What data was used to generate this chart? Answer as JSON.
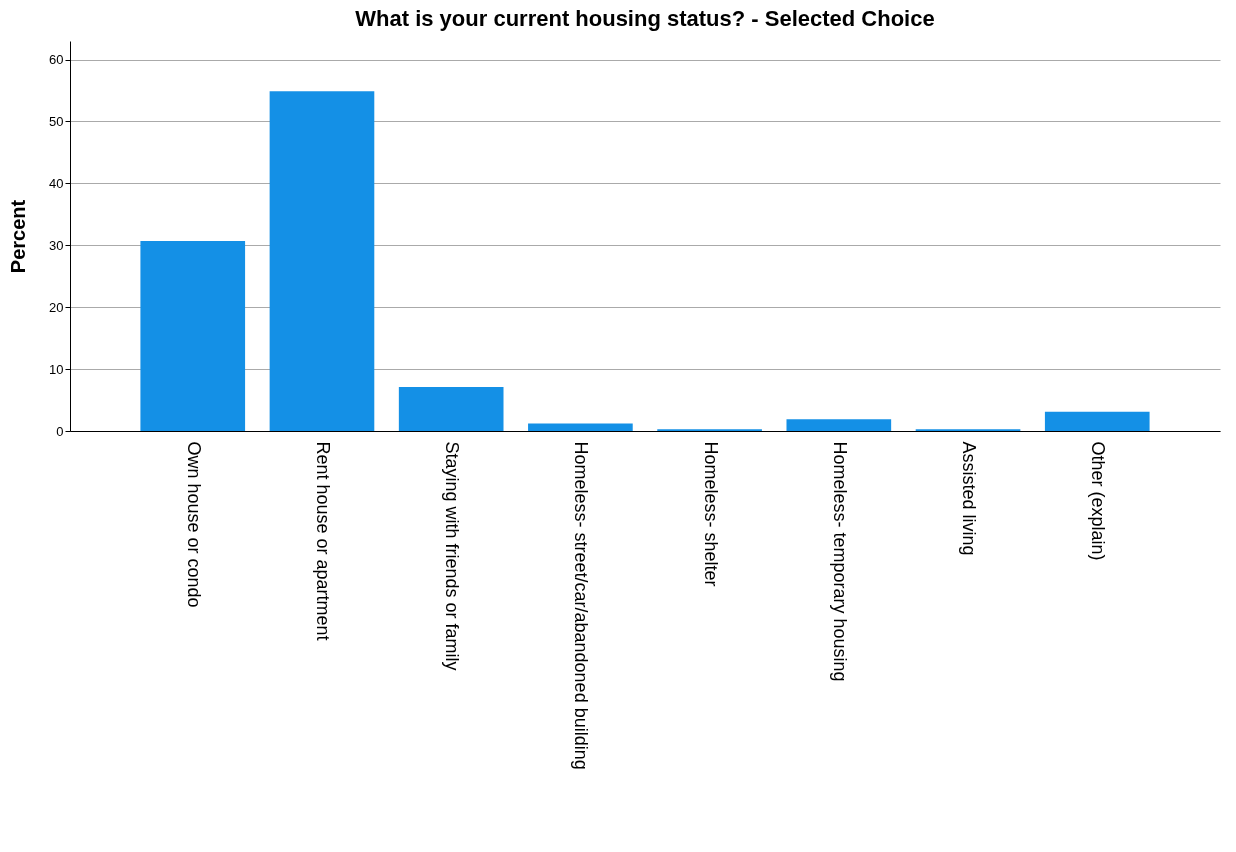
{
  "chart_data": {
    "type": "bar",
    "title": "What is your current housing status? - Selected Choice",
    "ylabel": "Percent",
    "categories": [
      "Own house or condo",
      "Rent house or apartment",
      "Staying with friends or family",
      "Homeless- street/car/abandoned building",
      "Homeless- shelter",
      "Homeless- temporary housing",
      "Assisted living",
      "Other (explain)"
    ],
    "values": [
      30.7,
      54.9,
      7.1,
      1.2,
      0.3,
      1.9,
      0.3,
      3.1
    ],
    "color": "#1490e6",
    "ylim": [
      0,
      63
    ],
    "yticks": [
      0,
      10,
      20,
      30,
      40,
      50,
      60
    ],
    "grid": "y"
  }
}
